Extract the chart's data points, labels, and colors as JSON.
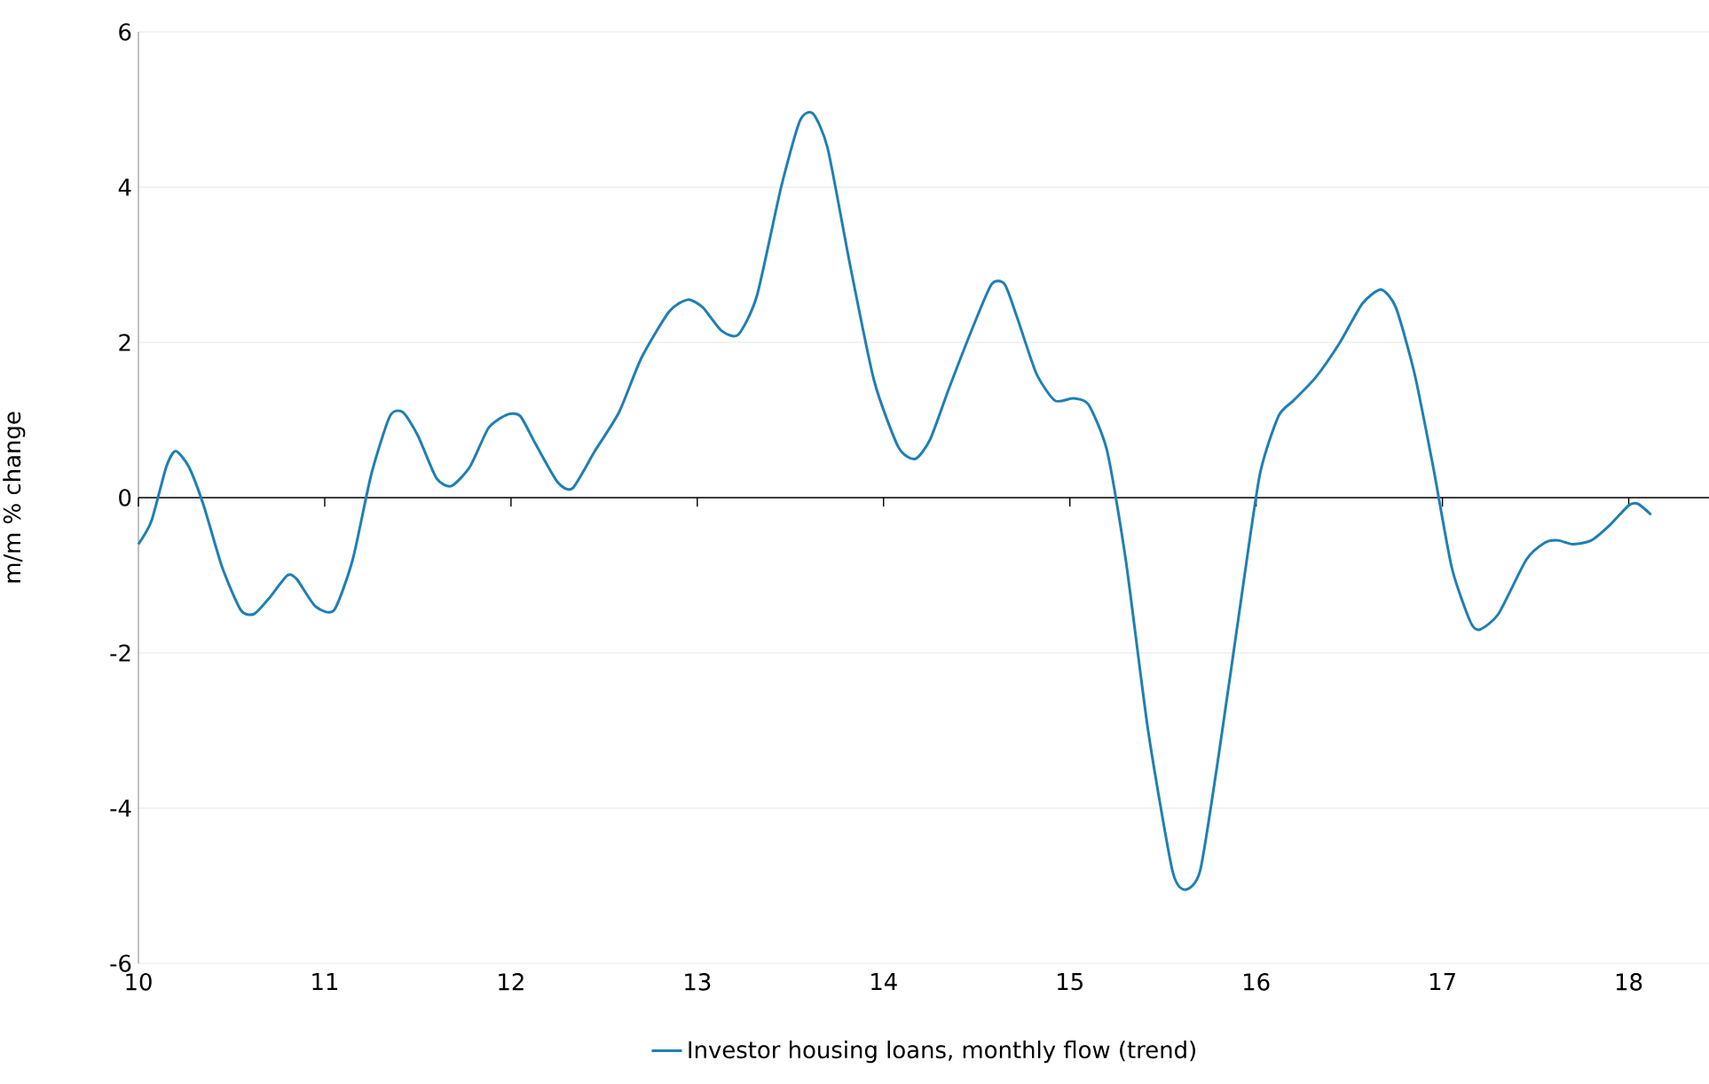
{
  "chart_data": {
    "type": "line",
    "ylabel": "m/m % change",
    "xlim": [
      10,
      18.45
    ],
    "ylim": [
      -6,
      6
    ],
    "xticks": [
      10,
      11,
      12,
      13,
      14,
      15,
      16,
      17,
      18
    ],
    "yticks": [
      -6,
      -4,
      -2,
      0,
      2,
      4,
      6
    ],
    "grid": "y",
    "legend": "bottom",
    "marker": "none",
    "line_style": "solid",
    "series": [
      {
        "name": "Investor housing loans, monthly flow (trend)",
        "color": "#1f7fb5",
        "x": [
          10.0,
          10.07,
          10.15,
          10.2,
          10.27,
          10.35,
          10.45,
          10.55,
          10.62,
          10.7,
          10.8,
          10.85,
          10.95,
          11.05,
          11.15,
          11.25,
          11.35,
          11.42,
          11.5,
          11.6,
          11.68,
          11.78,
          11.88,
          11.98,
          12.05,
          12.13,
          12.25,
          12.33,
          12.45,
          12.58,
          12.7,
          12.85,
          12.95,
          13.03,
          13.13,
          13.22,
          13.32,
          13.45,
          13.55,
          13.62,
          13.7,
          13.82,
          13.95,
          14.08,
          14.17,
          14.25,
          14.35,
          14.48,
          14.58,
          14.65,
          14.72,
          14.82,
          14.92,
          15.02,
          15.1,
          15.2,
          15.3,
          15.42,
          15.55,
          15.62,
          15.7,
          15.8,
          15.92,
          16.02,
          16.12,
          16.2,
          16.32,
          16.45,
          16.57,
          16.67,
          16.75,
          16.85,
          16.95,
          17.05,
          17.15,
          17.2,
          17.3,
          17.45,
          17.55,
          17.62,
          17.7,
          17.8,
          17.9,
          18.0,
          18.05,
          18.12
        ],
        "values": [
          -0.6,
          -0.3,
          0.4,
          0.6,
          0.4,
          -0.1,
          -0.9,
          -1.45,
          -1.5,
          -1.3,
          -1.0,
          -1.05,
          -1.4,
          -1.45,
          -0.8,
          0.3,
          1.05,
          1.1,
          0.8,
          0.25,
          0.15,
          0.4,
          0.9,
          1.07,
          1.05,
          0.7,
          0.2,
          0.12,
          0.6,
          1.1,
          1.8,
          2.4,
          2.55,
          2.45,
          2.15,
          2.1,
          2.6,
          4.0,
          4.85,
          4.95,
          4.5,
          3.0,
          1.5,
          0.65,
          0.5,
          0.75,
          1.4,
          2.2,
          2.75,
          2.75,
          2.3,
          1.6,
          1.25,
          1.28,
          1.2,
          0.6,
          -0.8,
          -3.0,
          -4.8,
          -5.05,
          -4.8,
          -3.3,
          -1.3,
          0.3,
          1.05,
          1.25,
          1.55,
          2.0,
          2.5,
          2.68,
          2.45,
          1.6,
          0.4,
          -0.9,
          -1.6,
          -1.7,
          -1.5,
          -0.8,
          -0.58,
          -0.55,
          -0.6,
          -0.55,
          -0.35,
          -0.1,
          -0.08,
          -0.22
        ]
      }
    ]
  }
}
